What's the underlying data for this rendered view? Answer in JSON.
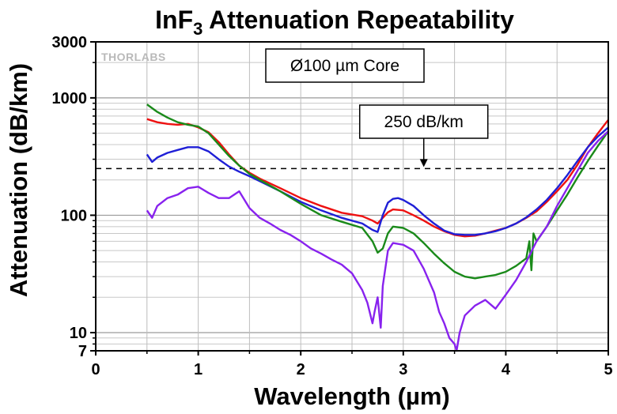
{
  "chart_data": {
    "type": "line",
    "title_main": "InF",
    "title_sub": "3",
    "title_rest": " Attenuation Repeatability",
    "xlabel": "Wavelength (µm)",
    "ylabel": "Attenuation (dB/km)",
    "xlim": [
      0,
      5
    ],
    "ylim": [
      7,
      3000
    ],
    "yscale": "log",
    "grid": true,
    "x_ticks": [
      {
        "value": 0,
        "label": "0"
      },
      {
        "value": 1,
        "label": "1"
      },
      {
        "value": 2,
        "label": "2"
      },
      {
        "value": 3,
        "label": "3"
      },
      {
        "value": 4,
        "label": "4"
      },
      {
        "value": 5,
        "label": "5"
      }
    ],
    "y_ticks": [
      {
        "value": 7,
        "label": "7"
      },
      {
        "value": 10,
        "label": "10"
      },
      {
        "value": 100,
        "label": "100"
      },
      {
        "value": 1000,
        "label": "1000"
      },
      {
        "value": 3000,
        "label": "3000"
      }
    ],
    "reference_line": {
      "value": 250,
      "label": "250 dB/km",
      "label_x": 3.2
    },
    "annotation_box": "Ø100 µm Core",
    "logo": "THORLABS",
    "series": [
      {
        "color": "#ee1111",
        "x": [
          0.5,
          0.6,
          0.7,
          0.8,
          0.9,
          1.0,
          1.1,
          1.2,
          1.3,
          1.4,
          1.5,
          1.6,
          1.8,
          2.0,
          2.2,
          2.4,
          2.6,
          2.7,
          2.75,
          2.8,
          2.85,
          2.9,
          3.0,
          3.1,
          3.2,
          3.3,
          3.4,
          3.5,
          3.6,
          3.7,
          3.8,
          3.9,
          4.0,
          4.1,
          4.2,
          4.3,
          4.4,
          4.5,
          4.6,
          4.7,
          4.8,
          4.9,
          5.0
        ],
        "y": [
          660,
          620,
          600,
          590,
          600,
          560,
          510,
          420,
          330,
          265,
          230,
          205,
          170,
          140,
          120,
          105,
          98,
          90,
          85,
          95,
          106,
          112,
          110,
          100,
          90,
          80,
          73,
          68,
          66,
          67,
          70,
          74,
          78,
          85,
          95,
          108,
          130,
          160,
          200,
          270,
          380,
          500,
          650
        ]
      },
      {
        "color": "#1f1fd6",
        "x": [
          0.5,
          0.55,
          0.6,
          0.7,
          0.8,
          0.9,
          1.0,
          1.1,
          1.2,
          1.3,
          1.4,
          1.5,
          1.6,
          1.8,
          2.0,
          2.2,
          2.4,
          2.6,
          2.7,
          2.75,
          2.8,
          2.85,
          2.9,
          2.95,
          3.0,
          3.1,
          3.2,
          3.3,
          3.4,
          3.5,
          3.6,
          3.7,
          3.8,
          3.9,
          4.0,
          4.1,
          4.2,
          4.3,
          4.4,
          4.5,
          4.6,
          4.7,
          4.8,
          4.9,
          5.0
        ],
        "y": [
          330,
          285,
          310,
          340,
          360,
          380,
          380,
          350,
          300,
          260,
          235,
          215,
          195,
          160,
          130,
          110,
          95,
          85,
          75,
          72,
          100,
          128,
          138,
          140,
          135,
          120,
          100,
          85,
          74,
          69,
          68,
          68,
          70,
          73,
          78,
          85,
          96,
          112,
          135,
          170,
          220,
          290,
          380,
          470,
          560
        ]
      },
      {
        "color": "#1a8a1a",
        "x": [
          0.5,
          0.6,
          0.7,
          0.8,
          0.9,
          1.0,
          1.1,
          1.2,
          1.3,
          1.4,
          1.5,
          1.6,
          1.8,
          2.0,
          2.2,
          2.4,
          2.6,
          2.7,
          2.75,
          2.8,
          2.85,
          2.9,
          3.0,
          3.1,
          3.2,
          3.3,
          3.4,
          3.5,
          3.6,
          3.7,
          3.8,
          3.9,
          4.0,
          4.1,
          4.2,
          4.23,
          4.25,
          4.27,
          4.3,
          4.4,
          4.5,
          4.6,
          4.7,
          4.8,
          4.9,
          5.0
        ],
        "y": [
          880,
          760,
          680,
          620,
          590,
          570,
          500,
          400,
          320,
          265,
          225,
          200,
          160,
          125,
          100,
          88,
          78,
          60,
          48,
          52,
          70,
          80,
          78,
          70,
          58,
          47,
          39,
          33,
          30,
          29,
          30,
          31,
          33,
          37,
          43,
          60,
          34,
          70,
          60,
          80,
          110,
          150,
          210,
          290,
          390,
          520
        ]
      },
      {
        "color": "#8822ee",
        "x": [
          0.5,
          0.55,
          0.6,
          0.7,
          0.8,
          0.9,
          1.0,
          1.1,
          1.2,
          1.3,
          1.4,
          1.5,
          1.6,
          1.7,
          1.8,
          1.9,
          2.0,
          2.1,
          2.2,
          2.3,
          2.4,
          2.5,
          2.6,
          2.65,
          2.7,
          2.72,
          2.75,
          2.78,
          2.8,
          2.85,
          2.9,
          3.0,
          3.1,
          3.2,
          3.3,
          3.35,
          3.4,
          3.45,
          3.5,
          3.52,
          3.55,
          3.6,
          3.7,
          3.8,
          3.9,
          4.0,
          4.1,
          4.2,
          4.3,
          4.4,
          4.5,
          4.6,
          4.7,
          4.8,
          4.9,
          5.0
        ],
        "y": [
          110,
          95,
          120,
          140,
          150,
          170,
          175,
          155,
          140,
          140,
          160,
          115,
          95,
          85,
          75,
          68,
          60,
          52,
          47,
          42,
          38,
          32,
          23,
          18,
          12,
          15,
          20,
          11,
          25,
          50,
          58,
          56,
          50,
          35,
          22,
          15,
          12,
          9,
          8,
          7,
          10,
          14,
          17,
          19,
          16,
          21,
          28,
          40,
          60,
          80,
          120,
          170,
          240,
          340,
          430,
          520
        ]
      }
    ]
  }
}
